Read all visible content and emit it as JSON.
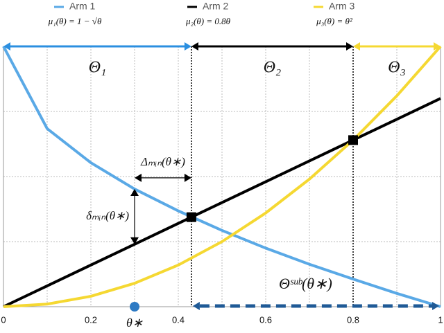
{
  "chart_data": {
    "type": "line",
    "x": [
      0,
      0.1,
      0.2,
      0.3,
      0.4,
      0.5,
      0.6,
      0.7,
      0.8,
      0.9,
      1
    ],
    "series": [
      {
        "name": "Arm 1",
        "color": "#5aa9e6",
        "formula": "μ₁(θ) = 1 − √θ",
        "values": [
          1,
          0.684,
          0.553,
          0.452,
          0.368,
          0.293,
          0.225,
          0.163,
          0.106,
          0.051,
          0
        ]
      },
      {
        "name": "Arm 2",
        "color": "#000000",
        "formula": "μ₂(θ) = 0.8θ",
        "values": [
          0,
          0.08,
          0.16,
          0.24,
          0.32,
          0.4,
          0.48,
          0.56,
          0.64,
          0.72,
          0.8
        ]
      },
      {
        "name": "Arm 3",
        "color": "#f5d832",
        "formula": "μ₃(θ) = θ²",
        "values": [
          0,
          0.01,
          0.04,
          0.09,
          0.16,
          0.25,
          0.36,
          0.49,
          0.64,
          0.81,
          1
        ]
      }
    ],
    "xlim": [
      0,
      1
    ],
    "ylim": [
      0,
      1
    ],
    "xticks": [
      0,
      0.2,
      0.4,
      0.6,
      0.8,
      1
    ],
    "xminor": [
      0.1,
      0.3,
      0.5,
      0.7,
      0.9
    ],
    "yticks": [
      0,
      0.25,
      0.5,
      0.75,
      1
    ],
    "grid": true,
    "regions": [
      {
        "label": "Θ₁",
        "x": [
          0,
          0.43
        ],
        "color": "#2b8fe0"
      },
      {
        "label": "Θ₂",
        "x": [
          0.43,
          0.8
        ],
        "color": "#000000"
      },
      {
        "label": "Θ₃",
        "x": [
          0.8,
          1
        ],
        "color": "#f5d832"
      }
    ],
    "intersections": [
      {
        "x": 0.43,
        "y": 0.344
      },
      {
        "x": 0.8,
        "y": 0.64
      }
    ],
    "theta_star": {
      "label": "θ∗",
      "x": 0.3,
      "y": 0
    },
    "delta_gap": {
      "label": "Δₘᵢₙ(θ∗)",
      "x": [
        0.3,
        0.43
      ],
      "y": 0.495
    },
    "delta_vertical": {
      "label": "δₘᵢₙ(θ∗)",
      "x": 0.3,
      "y": [
        0.24,
        0.452
      ]
    },
    "suboptimal": {
      "label": "Θˢᵘᵇ(θ∗)",
      "x": [
        0.43,
        1
      ],
      "y": 0,
      "color": "#1f5a96"
    }
  }
}
